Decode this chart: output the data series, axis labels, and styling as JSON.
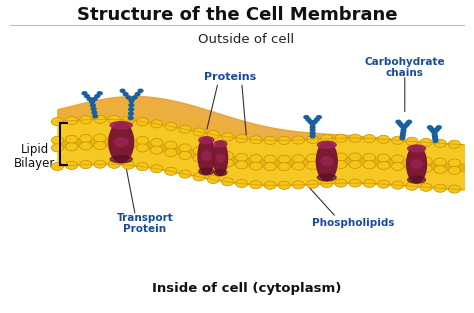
{
  "title": "Structure of the Cell Membrane",
  "title_fontsize": 13,
  "title_fontweight": "bold",
  "outside_label": "Outside of cell",
  "inside_label": "Inside of cell (cytoplasm)",
  "lipid_label": "Lipid\nBilayer",
  "labels": {
    "proteins": "Proteins",
    "transport": "Transport\nProtein",
    "phospholipids": "Phospholipids",
    "carbohydrate": "Carbohydrate\nchains"
  },
  "label_color": "#1a4a9f",
  "bg_color": "#ffffff",
  "head_color": "#f5c518",
  "head_edge": "#c89000",
  "protein_color": "#7a1535",
  "protein_highlight": "#9b2555",
  "carb_color": "#1a5fa0",
  "membrane_bg": "#f5c518",
  "inner_bg": "#d4a017",
  "outside_blob": "#e8a830",
  "xlim": [
    0,
    10
  ],
  "ylim": [
    0,
    10
  ]
}
